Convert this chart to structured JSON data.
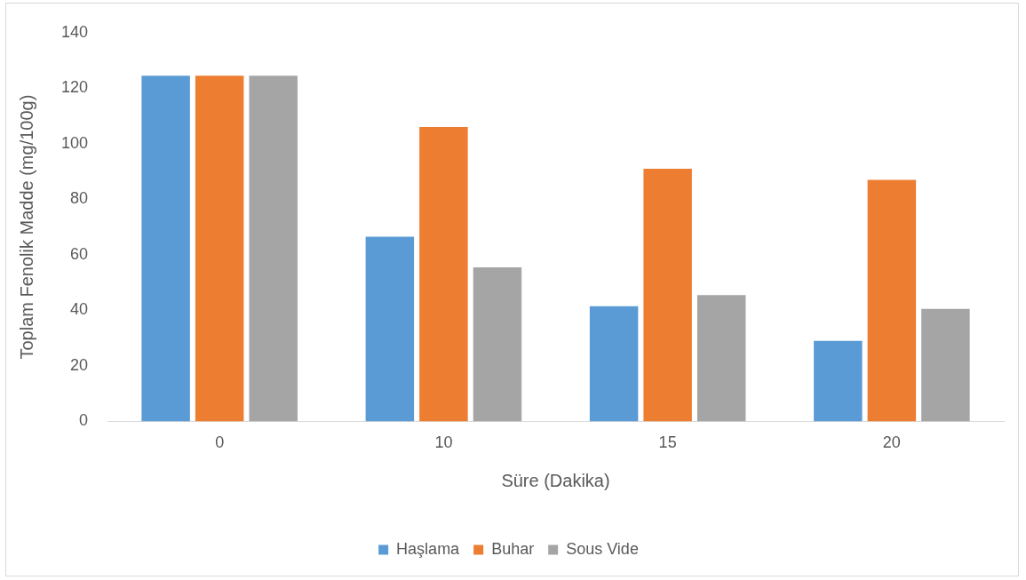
{
  "chart_data": {
    "type": "bar",
    "xlabel": "Süre (Dakika)",
    "ylabel": "Toplam Fenolik Madde (mg/100g)",
    "categories": [
      "0",
      "10",
      "15",
      "20"
    ],
    "series": [
      {
        "name": "Haşlama",
        "color": "#5b9bd5",
        "values": [
          124.5,
          66.5,
          41.5,
          29
        ]
      },
      {
        "name": "Buhar",
        "color": "#ed7d31",
        "values": [
          124.5,
          106,
          91,
          87
        ]
      },
      {
        "name": "Sous Vide",
        "color": "#a5a5a5",
        "values": [
          124.5,
          55.5,
          45.5,
          40.5
        ]
      }
    ],
    "ylim": [
      0,
      140
    ],
    "yticks": [
      0,
      20,
      40,
      60,
      80,
      100,
      120,
      140
    ],
    "grid": false,
    "legend": "bottom"
  }
}
